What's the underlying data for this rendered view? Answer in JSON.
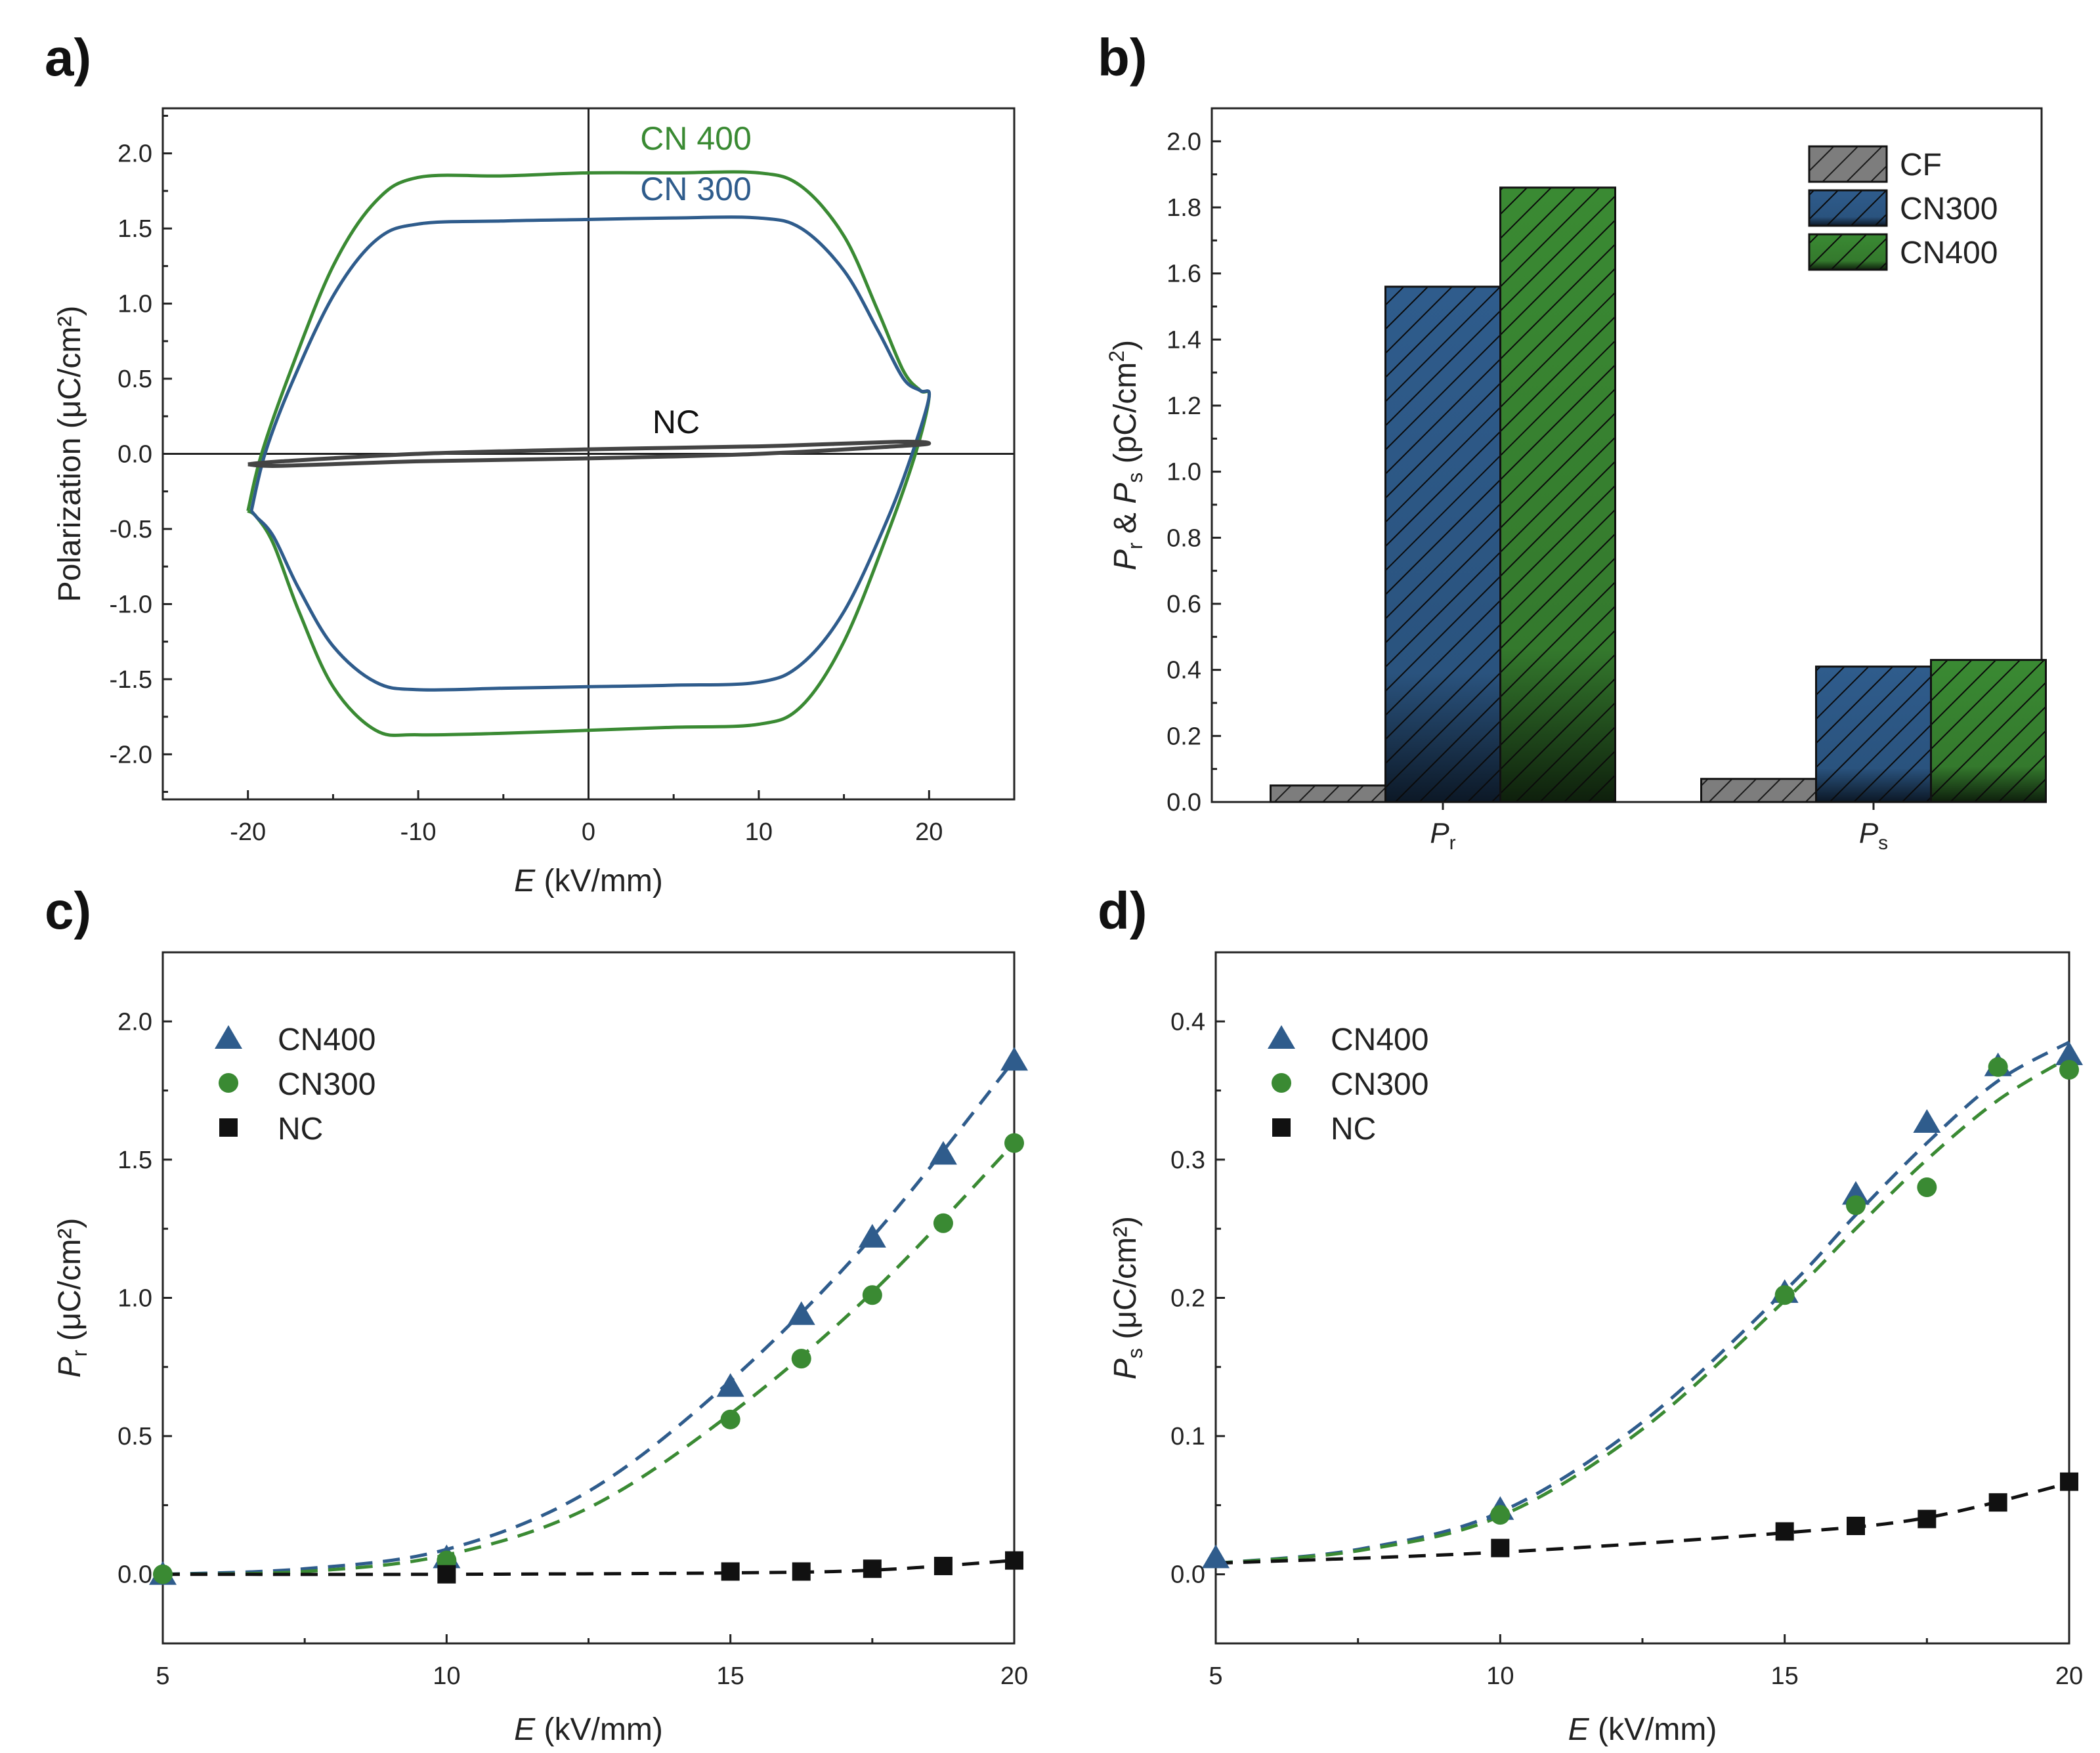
{
  "chart_data": [
    {
      "panel": "a)",
      "type": "line",
      "xlabel_italic": "E",
      "xlabel_unit": " (kV/mm)",
      "ylabel": "Polarization (μC/cm²)",
      "xlim": [
        -25,
        25
      ],
      "ylim": [
        -2.3,
        2.3
      ],
      "xticks": [
        -20,
        -10,
        0,
        10,
        20
      ],
      "xtick_labels": [
        "-20",
        "-10",
        "0",
        "10",
        "20"
      ],
      "yticks": [
        -2.0,
        -1.5,
        -1.0,
        -0.5,
        0.0,
        0.5,
        1.0,
        1.5,
        2.0
      ],
      "ytick_labels": [
        "-2.0",
        "-1.5",
        "-1.0",
        "-0.5",
        "0.0",
        "0.5",
        "1.0",
        "1.5",
        "2.0"
      ],
      "zero_lines": true,
      "series": [
        {
          "label": "CN 400",
          "color": "#3a8a33",
          "x": [
            -20,
            -19.2,
            -17.5,
            -15,
            -12.5,
            -10,
            -5,
            0,
            5,
            10,
            12.5,
            15,
            17,
            18.5,
            19.5,
            20,
            19.2,
            17.5,
            15,
            12.5,
            10,
            5,
            0,
            -5,
            -10,
            -12.5,
            -15,
            -17,
            -18.5,
            -19.5,
            -20
          ],
          "y": [
            -0.38,
            0.0,
            0.55,
            1.25,
            1.68,
            1.84,
            1.85,
            1.87,
            1.87,
            1.87,
            1.78,
            1.45,
            0.95,
            0.55,
            0.42,
            0.38,
            0.0,
            -0.55,
            -1.25,
            -1.68,
            -1.8,
            -1.82,
            -1.84,
            -1.86,
            -1.87,
            -1.84,
            -1.55,
            -1.05,
            -0.6,
            -0.42,
            -0.38
          ]
        },
        {
          "label": "CN 300",
          "color": "#2f5c8c",
          "x": [
            -19.8,
            -19.0,
            -17.5,
            -15,
            -12.5,
            -10,
            -5,
            0,
            5,
            10,
            12.5,
            15,
            17,
            18.5,
            19.5,
            20,
            19.0,
            17.5,
            15,
            12.5,
            10,
            5,
            0,
            -5,
            -10,
            -12.5,
            -15,
            -17,
            -18.5,
            -19.5,
            -19.8
          ],
          "y": [
            -0.38,
            0.0,
            0.45,
            1.05,
            1.42,
            1.53,
            1.55,
            1.56,
            1.57,
            1.57,
            1.5,
            1.22,
            0.82,
            0.5,
            0.42,
            0.38,
            0.0,
            -0.45,
            -1.05,
            -1.4,
            -1.52,
            -1.54,
            -1.55,
            -1.56,
            -1.57,
            -1.52,
            -1.28,
            -0.9,
            -0.55,
            -0.42,
            -0.38
          ]
        },
        {
          "label": "NC",
          "color": "#444444",
          "x": [
            -20,
            -18,
            -10,
            0,
            10,
            18,
            20,
            18,
            10,
            0,
            -10,
            -18,
            -20
          ],
          "y": [
            -0.07,
            -0.05,
            0.0,
            0.03,
            0.05,
            0.08,
            0.07,
            0.05,
            0.0,
            -0.03,
            -0.05,
            -0.08,
            -0.07
          ]
        }
      ]
    },
    {
      "panel": "b)",
      "type": "bar",
      "ylabel_parts": [
        "P",
        "r",
        " & ",
        "P",
        "s",
        " (pC/cm",
        "2",
        ")"
      ],
      "ylim": [
        0,
        2.1
      ],
      "yticks": [
        0.0,
        0.2,
        0.4,
        0.6,
        0.8,
        1.0,
        1.2,
        1.4,
        1.6,
        1.8,
        2.0
      ],
      "ytick_labels": [
        "0.0",
        "0.2",
        "0.4",
        "0.6",
        "0.8",
        "1.0",
        "1.2",
        "1.4",
        "1.6",
        "1.8",
        "2.0"
      ],
      "categories": [
        {
          "main": "P",
          "sub": "r"
        },
        {
          "main": "P",
          "sub": "s"
        }
      ],
      "legend_position": "top-right",
      "series": [
        {
          "name": "CF",
          "color": "#7a7a7a",
          "values": [
            0.05,
            0.07
          ]
        },
        {
          "name": "CN300",
          "color": "#2f5c8c",
          "values": [
            1.56,
            0.41
          ]
        },
        {
          "name": "CN400",
          "color": "#3a8a33",
          "values": [
            1.86,
            0.43
          ]
        }
      ]
    },
    {
      "panel": "c)",
      "type": "scatter",
      "xlabel_italic": "E",
      "xlabel_unit": " (kV/mm)",
      "ylabel_main": "P",
      "ylabel_sub": "r",
      "ylabel_unit": " (μC/cm²)",
      "xlim": [
        5,
        20
      ],
      "ylim": [
        -0.25,
        2.25
      ],
      "xticks": [
        5,
        10,
        15,
        20
      ],
      "xtick_labels": [
        "5",
        "10",
        "15",
        "20"
      ],
      "yticks": [
        0.0,
        0.5,
        1.0,
        1.5,
        2.0
      ],
      "ytick_labels": [
        "0.0",
        "0.5",
        "1.0",
        "1.5",
        "2.0"
      ],
      "legend_position": "top-left",
      "series": [
        {
          "name": "CN400",
          "marker": "triangle",
          "color": "#2f5c8c",
          "x": [
            5,
            10,
            15,
            16.25,
            17.5,
            18.75,
            20
          ],
          "y": [
            0.0,
            0.06,
            0.68,
            0.94,
            1.22,
            1.52,
            1.86
          ],
          "fit_x": [
            5,
            7.5,
            10,
            12.5,
            15,
            17.5,
            20
          ],
          "fit_y": [
            0.0,
            0.02,
            0.09,
            0.3,
            0.7,
            1.22,
            1.86
          ]
        },
        {
          "name": "CN300",
          "marker": "circle",
          "color": "#3a8a33",
          "x": [
            5,
            10,
            15,
            16.25,
            17.5,
            18.75,
            20
          ],
          "y": [
            0.0,
            0.05,
            0.56,
            0.78,
            1.01,
            1.27,
            1.56
          ],
          "fit_x": [
            5,
            7.5,
            10,
            12.5,
            15,
            17.5,
            20
          ],
          "fit_y": [
            0.0,
            0.01,
            0.07,
            0.24,
            0.58,
            1.02,
            1.56
          ]
        },
        {
          "name": "NC",
          "marker": "square",
          "color": "#111111",
          "x": [
            10,
            15,
            16.25,
            17.5,
            18.75,
            20
          ],
          "y": [
            0.0,
            0.01,
            0.01,
            0.02,
            0.03,
            0.05
          ],
          "fit_x": [
            5,
            10,
            15,
            17.5,
            20
          ],
          "fit_y": [
            0.0,
            0.0,
            0.005,
            0.015,
            0.05
          ]
        }
      ]
    },
    {
      "panel": "d)",
      "type": "scatter",
      "xlabel_italic": "E",
      "xlabel_unit": " (kV/mm)",
      "ylabel_main": "P",
      "ylabel_sub": "s",
      "ylabel_unit": " (μC/cm²)",
      "xlim": [
        5,
        20
      ],
      "ylim": [
        -0.05,
        0.45
      ],
      "xticks": [
        5,
        10,
        15,
        20
      ],
      "xtick_labels": [
        "5",
        "10",
        "15",
        "20"
      ],
      "yticks": [
        0.0,
        0.1,
        0.2,
        0.3,
        0.4
      ],
      "ytick_labels": [
        "0.0",
        "0.1",
        "0.2",
        "0.3",
        "0.4"
      ],
      "legend_position": "top-left",
      "series": [
        {
          "name": "CN400",
          "marker": "triangle",
          "color": "#2f5c8c",
          "x": [
            5,
            10,
            15,
            16.25,
            17.5,
            18.75,
            20
          ],
          "y": [
            0.012,
            0.047,
            0.204,
            0.275,
            0.327,
            0.368,
            0.376
          ],
          "fit_x": [
            5,
            7.5,
            10,
            12.5,
            15,
            16.25,
            17.5,
            18.75,
            20
          ],
          "fit_y": [
            0.008,
            0.018,
            0.045,
            0.11,
            0.205,
            0.26,
            0.312,
            0.357,
            0.385
          ]
        },
        {
          "name": "CN300",
          "marker": "circle",
          "color": "#3a8a33",
          "x": [
            10,
            15,
            16.25,
            17.5,
            18.75,
            20
          ],
          "y": [
            0.043,
            0.202,
            0.267,
            0.28,
            0.367,
            0.365
          ],
          "fit_x": [
            5,
            7.5,
            10,
            12.5,
            15,
            16.25,
            17.5,
            18.75,
            20
          ],
          "fit_y": [
            0.008,
            0.017,
            0.042,
            0.105,
            0.198,
            0.25,
            0.3,
            0.343,
            0.374
          ]
        },
        {
          "name": "NC",
          "marker": "square",
          "color": "#111111",
          "x": [
            10,
            15,
            16.25,
            17.5,
            18.75,
            20
          ],
          "y": [
            0.019,
            0.031,
            0.035,
            0.04,
            0.052,
            0.067
          ],
          "fit_x": [
            5,
            10,
            15,
            17.5,
            20
          ],
          "fit_y": [
            0.008,
            0.016,
            0.03,
            0.041,
            0.066
          ]
        }
      ]
    }
  ]
}
